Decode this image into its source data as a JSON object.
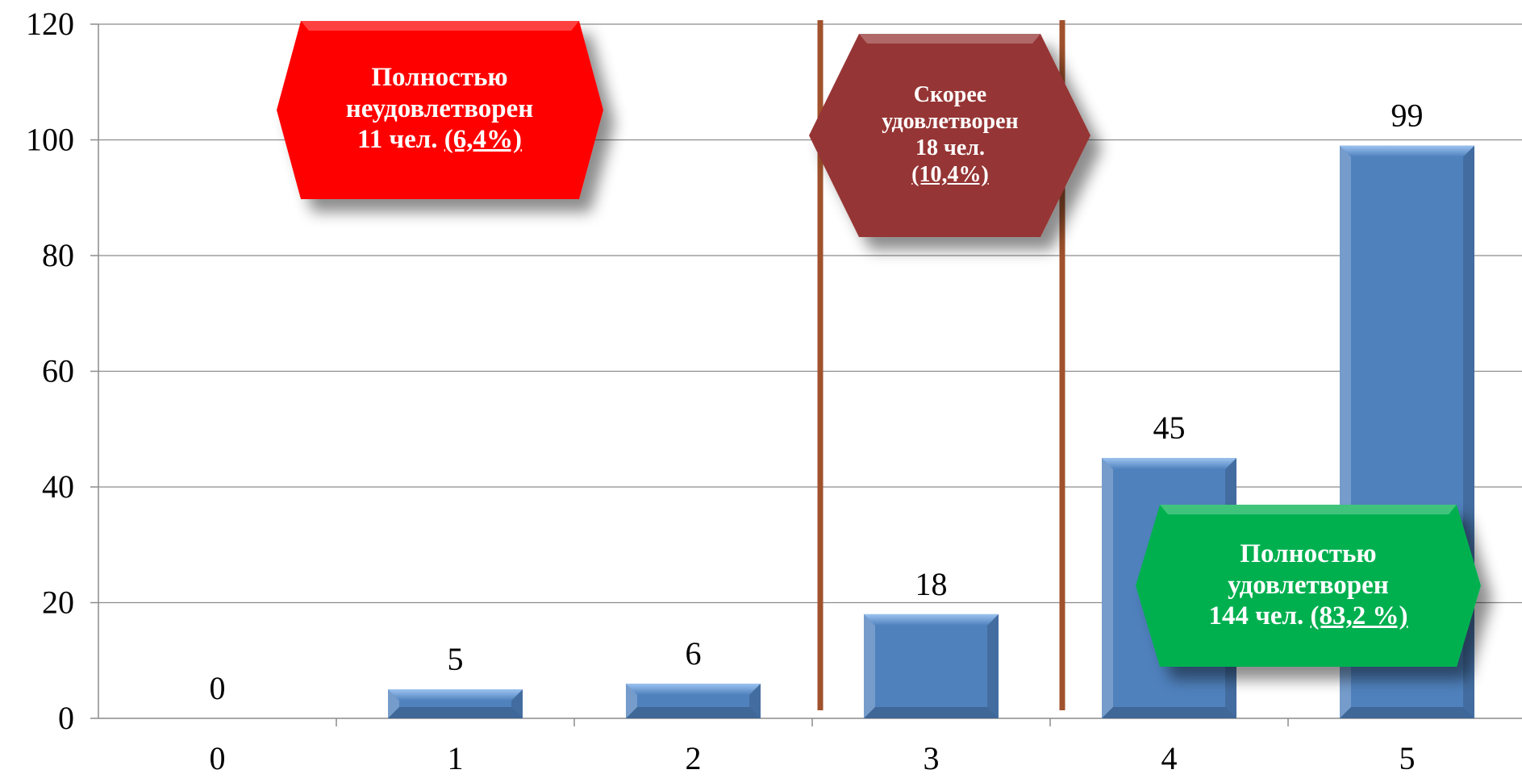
{
  "chart_data": {
    "type": "bar",
    "categories": [
      "0",
      "1",
      "2",
      "3",
      "4",
      "5"
    ],
    "values": [
      0,
      5,
      6,
      18,
      45,
      99
    ],
    "ylim": [
      0,
      120
    ],
    "yticks": [
      "0",
      "20",
      "40",
      "60",
      "80",
      "100",
      "120"
    ],
    "grid": true,
    "colors": {
      "bar": "#4f81bd",
      "divider": "#a0522d",
      "red": "#ff0000",
      "brown": "#963634",
      "green": "#00b050"
    }
  },
  "callouts": {
    "red": {
      "line1": "Полностью",
      "line2": "неудовлетворен",
      "line3": "11 чел.",
      "pct": "(6,4%)"
    },
    "brown": {
      "line1": "Скорее",
      "line2": "удовлетворен",
      "line3": "18 чел.",
      "pct": "(10,4%)"
    },
    "green": {
      "line1": "Полностью",
      "line2": "удовлетворен",
      "line3": "144 чел.",
      "pct": "(83,2 %)"
    }
  }
}
